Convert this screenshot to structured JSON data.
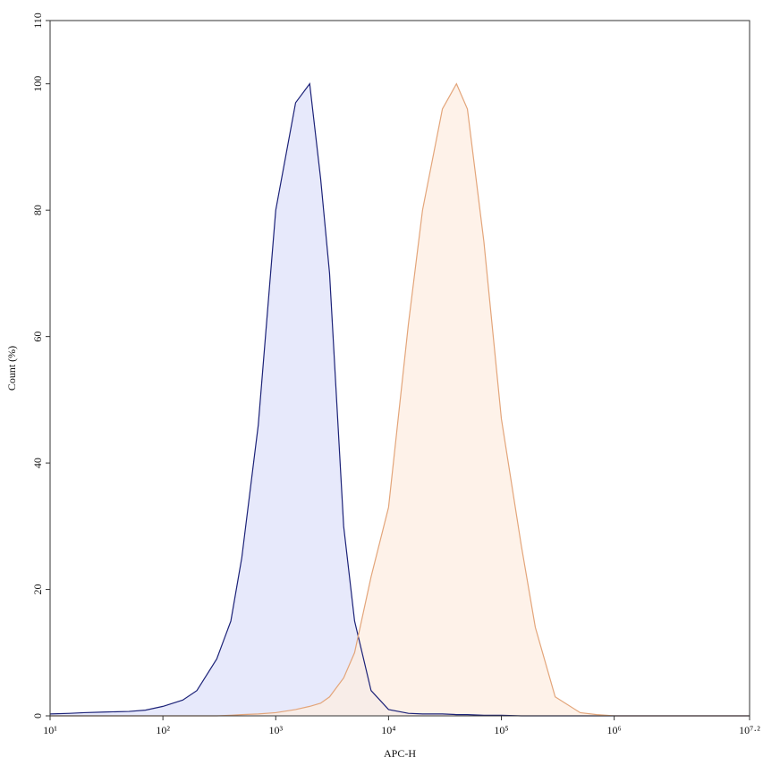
{
  "chart_data": {
    "type": "area",
    "x_label": "APC-H",
    "y_label": "Count (%)",
    "xscale": "log",
    "xlim": [
      10,
      15848931.92
    ],
    "ylim": [
      0,
      110
    ],
    "xticks": [
      {
        "value": 10,
        "label": "10¹"
      },
      {
        "value": 100,
        "label": "10²"
      },
      {
        "value": 1000,
        "label": "10³"
      },
      {
        "value": 10000,
        "label": "10⁴"
      },
      {
        "value": 100000,
        "label": "10⁵"
      },
      {
        "value": 1000000,
        "label": "10⁶"
      },
      {
        "value": 15848931.92,
        "label": "10⁷·²"
      }
    ],
    "yticks": [
      0,
      20,
      40,
      60,
      80,
      100,
      110
    ],
    "x": [
      10,
      15,
      20,
      30,
      50,
      70,
      100,
      150,
      200,
      300,
      400,
      500,
      700,
      1000,
      1500,
      2000,
      2500,
      3000,
      4000,
      5000,
      7000,
      10000,
      15000,
      20000,
      30000,
      40000,
      50000,
      70000,
      100000,
      150000,
      200000,
      300000,
      500000,
      700000,
      1000000,
      5000000,
      15848931.92
    ],
    "series": [
      {
        "color": "#1c2278",
        "fill": "#dfe2fa",
        "values": [
          0.3,
          0.4,
          0.5,
          0.6,
          0.7,
          0.9,
          1.5,
          2.5,
          4,
          9,
          15,
          25,
          46,
          80,
          97,
          100,
          85,
          70,
          30,
          15,
          4,
          1,
          0.4,
          0.3,
          0.3,
          0.2,
          0.2,
          0.1,
          0.1,
          0,
          0,
          0,
          0,
          0,
          0,
          0,
          0
        ]
      },
      {
        "color": "#e3a57a",
        "fill": "#fdeee2",
        "values": [
          0,
          0,
          0,
          0,
          0,
          0,
          0,
          0,
          0,
          0,
          0.1,
          0.2,
          0.3,
          0.5,
          1,
          1.5,
          2,
          3,
          6,
          10,
          22,
          33,
          62,
          80,
          96,
          100,
          96,
          75,
          47,
          27,
          14,
          3,
          0.5,
          0.2,
          0,
          0,
          0
        ]
      }
    ]
  }
}
